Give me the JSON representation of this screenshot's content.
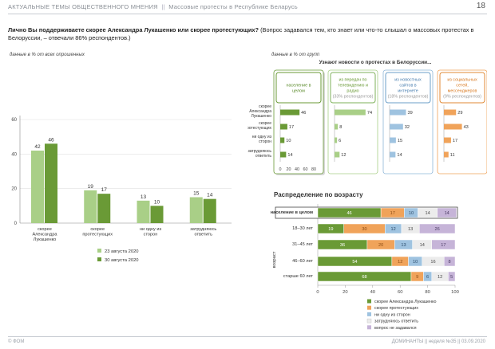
{
  "header": {
    "section": "АКТУАЛЬНЫЕ ТЕМЫ ОБЩЕСТВЕННОГО МНЕНИЯ",
    "separator": "||",
    "topic": "Массовые протесты в Республике Беларусь",
    "page_number": "18"
  },
  "question": {
    "bold": "Лично Вы поддерживаете скорее Александра Лукашенко или скорее протестующих?",
    "rest": " (Вопрос задавался тем, кто знает или что-то слышал о массовых протестах в Белоруссии, – отвечали 86% респондентов.)"
  },
  "notes": {
    "left": "данные в % от всех опрошенных",
    "right": "данные в % от групп"
  },
  "colors": {
    "light_green": "#a9cf87",
    "dark_green": "#6a9a36",
    "orange": "#f0a35a",
    "blue_light": "#9fc3e0",
    "purple_light": "#c6b4d8"
  },
  "chart_data": [
    {
      "type": "bar",
      "categories": [
        "скорее Александра Лукашенко",
        "скорее протестующих",
        "ни одну из сторон",
        "затрудняюсь ответить"
      ],
      "series": [
        {
          "name": "23 августа 2020",
          "values": [
            42,
            19,
            13,
            15
          ]
        },
        {
          "name": "30 августа 2020",
          "values": [
            46,
            17,
            10,
            14
          ]
        }
      ],
      "ylim": [
        0,
        60
      ],
      "yticks": [
        0,
        20,
        40,
        60
      ],
      "legend": "bottom"
    },
    {
      "type": "bar",
      "title": "Узнают новости о протестах в Белоруссии...",
      "row_labels": [
        "скорее Александра Лукашенко",
        "скорее протестующих",
        "ни одну из сторон",
        "затрудняюсь ответить"
      ],
      "groups": [
        {
          "name": "население в целом",
          "sub": "",
          "values": [
            46,
            17,
            10,
            14
          ]
        },
        {
          "name": "из передач по телевидению и радио",
          "sub": "(33% респондентов)",
          "values": [
            74,
            8,
            6,
            12
          ]
        },
        {
          "name": "из новостных сайтов в интернете",
          "sub": "(18% респондентов)",
          "values": [
            39,
            32,
            15,
            14
          ]
        },
        {
          "name": "из социальных сетей, мессенджеров",
          "sub": "(9% респондентов)",
          "values": [
            29,
            43,
            17,
            11
          ]
        }
      ],
      "xticks": [
        0,
        20,
        40,
        60,
        80
      ]
    },
    {
      "type": "bar",
      "title": "Распределение по возрасту",
      "ylabel": "возраст",
      "categories": [
        "население в целом",
        "18–30 лет",
        "31–45 лет",
        "46–60 лет",
        "старше 60 лет"
      ],
      "series": [
        {
          "name": "скорее Александра Лукашенко",
          "values": [
            46,
            19,
            36,
            54,
            68
          ]
        },
        {
          "name": "скорее протестующих",
          "values": [
            17,
            30,
            20,
            12,
            9
          ]
        },
        {
          "name": "ни одну из сторон",
          "values": [
            10,
            12,
            13,
            10,
            6
          ]
        },
        {
          "name": "затрудняюсь ответить",
          "values": [
            14,
            13,
            14,
            16,
            12
          ]
        },
        {
          "name": "вопрос не задавался",
          "values": [
            14,
            26,
            17,
            8,
            5
          ]
        }
      ],
      "xlim": [
        0,
        100
      ],
      "xticks": [
        0,
        20,
        40,
        60,
        80,
        100
      ],
      "legend": "bottom"
    }
  ],
  "footer": {
    "left": "© ФОМ",
    "right": "ДОМИНАНТЫ || неделя №35 || 03.09.2020"
  }
}
